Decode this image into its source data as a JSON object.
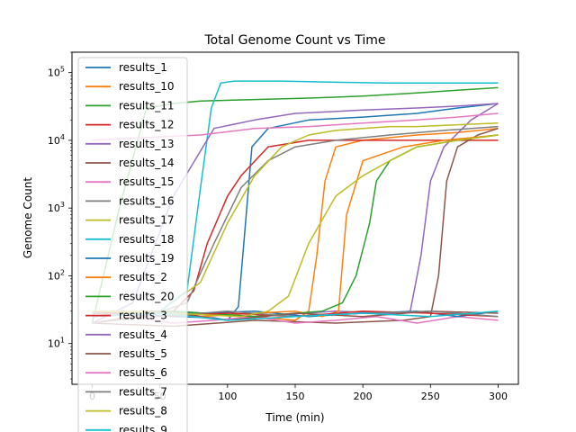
{
  "chart_data": {
    "type": "line",
    "title": "Total Genome Count vs Time",
    "xlabel": "Time (min)",
    "ylabel": "Genome Count",
    "yscale": "log",
    "xlim": [
      -15,
      315
    ],
    "ylim": [
      2.5,
      200000
    ],
    "x_ticks": [
      {
        "value": 0,
        "label": "0"
      },
      {
        "value": 50,
        "label": "50"
      },
      {
        "value": 100,
        "label": "100"
      },
      {
        "value": 150,
        "label": "150"
      },
      {
        "value": 200,
        "label": "200"
      },
      {
        "value": 250,
        "label": "250"
      },
      {
        "value": 300,
        "label": "300"
      }
    ],
    "y_ticks": [
      {
        "value": 10,
        "base": "10",
        "exp": "1"
      },
      {
        "value": 100,
        "base": "10",
        "exp": "2"
      },
      {
        "value": 1000,
        "base": "10",
        "exp": "3"
      },
      {
        "value": 10000,
        "base": "10",
        "exp": "4"
      },
      {
        "value": 100000,
        "base": "10",
        "exp": "5"
      }
    ],
    "grid": false,
    "legend_position": "upper-left",
    "series": [
      {
        "name": "results_1",
        "color": "#1f77b4",
        "x": [
          0,
          30,
          60,
          90,
          100,
          108,
          112,
          118,
          130,
          160,
          200,
          240,
          270,
          300
        ],
        "y": [
          30,
          28,
          25,
          24,
          22,
          35,
          300,
          8000,
          15000,
          20000,
          22000,
          25000,
          30000,
          35000
        ]
      },
      {
        "name": "results_10",
        "color": "#ff7f0e",
        "x": [
          0,
          40,
          80,
          120,
          150,
          160,
          166,
          172,
          180,
          200,
          240,
          270,
          300
        ],
        "y": [
          25,
          30,
          28,
          25,
          22,
          30,
          200,
          2500,
          8000,
          10000,
          12000,
          13000,
          15000
        ]
      },
      {
        "name": "results_11",
        "color": "#2ca02c",
        "x": [
          0,
          20,
          40,
          60,
          80,
          120,
          160,
          200,
          240,
          270,
          300
        ],
        "y": [
          20,
          1000,
          30000,
          35000,
          38000,
          40000,
          42000,
          45000,
          50000,
          55000,
          60000
        ]
      },
      {
        "name": "results_12",
        "color": "#d62728",
        "x": [
          0,
          30,
          60,
          75,
          85,
          100,
          110,
          130,
          160,
          200,
          240,
          270,
          300
        ],
        "y": [
          20,
          25,
          30,
          60,
          300,
          1500,
          3000,
          8000,
          10000,
          10000,
          10000,
          10000,
          10000
        ]
      },
      {
        "name": "results_13",
        "color": "#9467bd",
        "x": [
          0,
          60,
          120,
          180,
          220,
          235,
          243,
          250,
          260,
          280,
          300
        ],
        "y": [
          25,
          30,
          25,
          30,
          28,
          30,
          200,
          2500,
          8000,
          20000,
          35000
        ]
      },
      {
        "name": "results_14",
        "color": "#8c564b",
        "x": [
          0,
          60,
          120,
          180,
          230,
          250,
          256,
          262,
          270,
          285,
          300
        ],
        "y": [
          20,
          18,
          22,
          20,
          22,
          25,
          100,
          2500,
          8000,
          12000,
          15000
        ]
      },
      {
        "name": "results_15",
        "color": "#e377c2",
        "x": [
          0,
          30,
          60,
          90,
          120,
          150,
          180,
          210,
          240,
          270,
          300
        ],
        "y": [
          30,
          25,
          20,
          22,
          25,
          20,
          22,
          25,
          20,
          25,
          22
        ]
      },
      {
        "name": "results_16",
        "color": "#7f7f7f",
        "x": [
          0,
          40,
          70,
          90,
          110,
          130,
          150,
          180,
          220,
          260,
          300
        ],
        "y": [
          20,
          25,
          40,
          300,
          2000,
          5000,
          8000,
          10000,
          12000,
          14000,
          16000
        ]
      },
      {
        "name": "results_17",
        "color": "#bcbd22",
        "x": [
          0,
          50,
          80,
          100,
          120,
          140,
          160,
          180,
          200,
          220,
          240,
          270,
          300
        ],
        "y": [
          30,
          30,
          80,
          600,
          3000,
          8000,
          12000,
          14000,
          15000,
          16000,
          16000,
          17000,
          18000
        ]
      },
      {
        "name": "results_18",
        "color": "#17becf",
        "x": [
          0,
          50,
          70,
          80,
          88,
          95,
          105,
          140,
          180,
          220,
          260,
          300
        ],
        "y": [
          25,
          30,
          60,
          2000,
          30000,
          70000,
          75000,
          75000,
          72000,
          70000,
          70000,
          70000
        ]
      },
      {
        "name": "results_19",
        "color": "#1f77b4",
        "x": [
          0,
          40,
          80,
          120,
          160,
          200,
          240,
          270,
          300
        ],
        "y": [
          25,
          30,
          28,
          30,
          25,
          28,
          30,
          25,
          30
        ]
      },
      {
        "name": "results_2",
        "color": "#ff7f0e",
        "x": [
          0,
          40,
          80,
          120,
          150,
          170,
          182,
          188,
          200,
          230,
          260,
          300
        ],
        "y": [
          25,
          30,
          25,
          28,
          30,
          25,
          30,
          800,
          5000,
          8000,
          10000,
          12000
        ]
      },
      {
        "name": "results_20",
        "color": "#2ca02c",
        "x": [
          0,
          60,
          120,
          170,
          185,
          195,
          205,
          210,
          220,
          240,
          270,
          300
        ],
        "y": [
          28,
          30,
          25,
          30,
          40,
          100,
          600,
          2500,
          5000,
          8000,
          10000,
          12000
        ]
      },
      {
        "name": "results_3",
        "color": "#d62728",
        "x": [
          0,
          50,
          100,
          150,
          200,
          250,
          300
        ],
        "y": [
          30,
          25,
          28,
          25,
          30,
          28,
          25
        ]
      },
      {
        "name": "results_4",
        "color": "#9467bd",
        "x": [
          0,
          30,
          60,
          90,
          120,
          150,
          200,
          240,
          270,
          300
        ],
        "y": [
          20,
          40,
          1500,
          15000,
          20000,
          25000,
          28000,
          30000,
          32000,
          35000
        ]
      },
      {
        "name": "results_5",
        "color": "#8c564b",
        "x": [
          0,
          50,
          100,
          150,
          200,
          250,
          300
        ],
        "y": [
          25,
          30,
          22,
          28,
          25,
          30,
          28
        ]
      },
      {
        "name": "results_6",
        "color": "#e377c2",
        "x": [
          0,
          40,
          80,
          120,
          160,
          200,
          240,
          270,
          300
        ],
        "y": [
          10000,
          11000,
          12000,
          15000,
          16000,
          18000,
          20000,
          22000,
          25000
        ]
      },
      {
        "name": "results_7",
        "color": "#7f7f7f",
        "x": [
          0,
          50,
          100,
          150,
          200,
          250,
          300
        ],
        "y": [
          28,
          25,
          30,
          25,
          28,
          30,
          25
        ]
      },
      {
        "name": "results_8",
        "color": "#bcbd22",
        "x": [
          0,
          60,
          110,
          130,
          145,
          160,
          180,
          200,
          220,
          240,
          270,
          300
        ],
        "y": [
          30,
          28,
          25,
          30,
          50,
          300,
          1500,
          3000,
          5000,
          8000,
          10000,
          12000
        ]
      },
      {
        "name": "results_9",
        "color": "#17becf",
        "x": [
          0,
          50,
          100,
          150,
          200,
          250,
          300
        ],
        "y": [
          25,
          28,
          22,
          25,
          28,
          25,
          30
        ]
      }
    ]
  }
}
